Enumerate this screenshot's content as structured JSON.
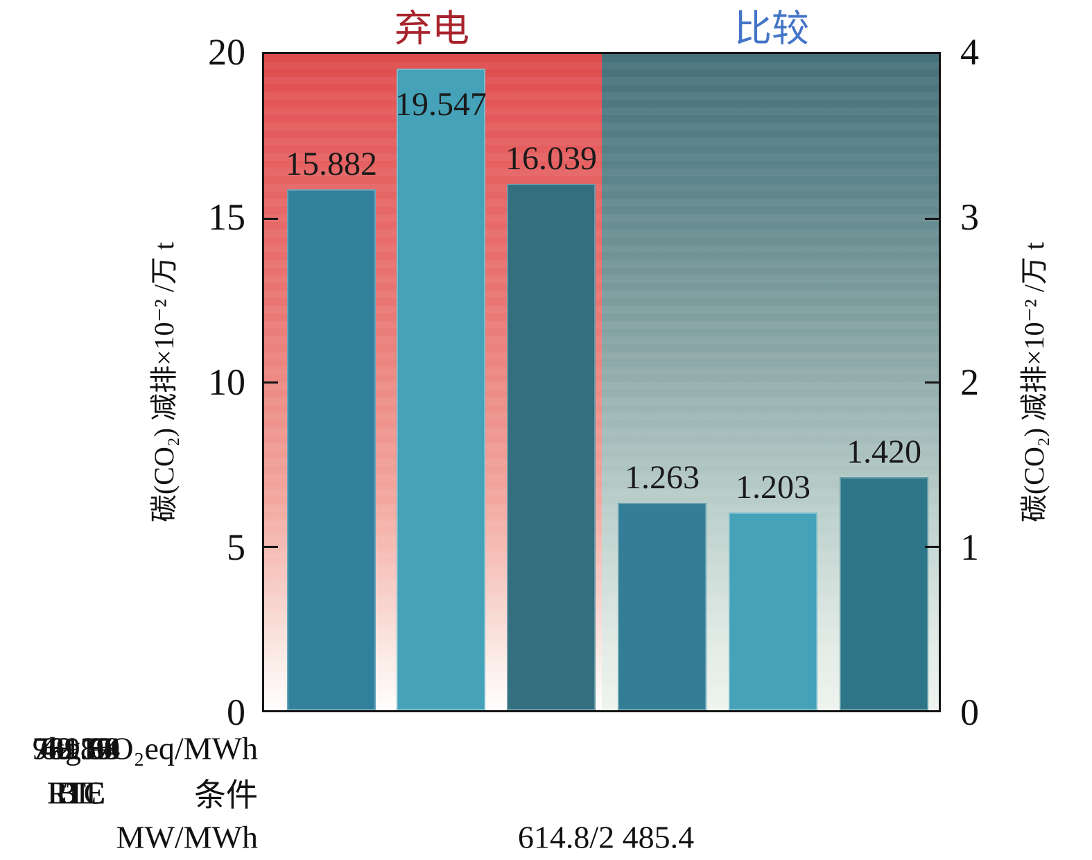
{
  "chart_data": {
    "type": "bar",
    "groups": [
      {
        "title": "弃电",
        "title_color": "#a8232c",
        "axis": "left"
      },
      {
        "title": "比较",
        "title_color": "#4374c8",
        "axis": "right"
      }
    ],
    "left_axis": {
      "label": "碳(CO₂) 减排×10⁻² /万 t",
      "lim": [
        0,
        20
      ],
      "ticks": [
        0,
        5,
        10,
        15,
        20
      ]
    },
    "right_axis": {
      "label": "碳(CO₂) 减排×10⁻² /万 t",
      "lim": [
        0,
        4
      ],
      "ticks": [
        0,
        1,
        2,
        3,
        4
      ]
    },
    "grid": false,
    "legend": "none",
    "bars": [
      {
        "group": 0,
        "condition": "BL",
        "value": 15.882,
        "label": "15.882",
        "kg_co2eq_per_mwh": "781.58",
        "color": "#31809c"
      },
      {
        "group": 0,
        "condition": "LTC",
        "value": 19.547,
        "label": "19.547",
        "kg_co2eq_per_mwh": "961.94",
        "color": "#45a2b8"
      },
      {
        "group": 0,
        "condition": "RTE",
        "value": 16.039,
        "label": "16.039",
        "kg_co2eq_per_mwh": "789.89",
        "color": "#346f80"
      },
      {
        "group": 1,
        "condition": "BL",
        "value": 1.263,
        "label": "1.263",
        "kg_co2eq_per_mwh": "62.16",
        "color": "#337d97"
      },
      {
        "group": 1,
        "condition": "LTC",
        "value": 1.203,
        "label": "1.203",
        "kg_co2eq_per_mwh": "48.39",
        "color": "#45a2b8"
      },
      {
        "group": 1,
        "condition": "RTE",
        "value": 1.42,
        "label": "1.420",
        "kg_co2eq_per_mwh": "69.87",
        "color": "#2e7587"
      }
    ],
    "x_table": {
      "row_headers": [
        "kg CO₂eq/MWh",
        "条件",
        "MW/MWh"
      ],
      "mw_mwh_value": "614.8/2 485.4"
    },
    "background": {
      "left_top_color": "#dd4a4b",
      "left_bottom_color": "#fffefd",
      "right_top_color": "#46717a",
      "right_bottom_color": "#eef3ee"
    }
  }
}
